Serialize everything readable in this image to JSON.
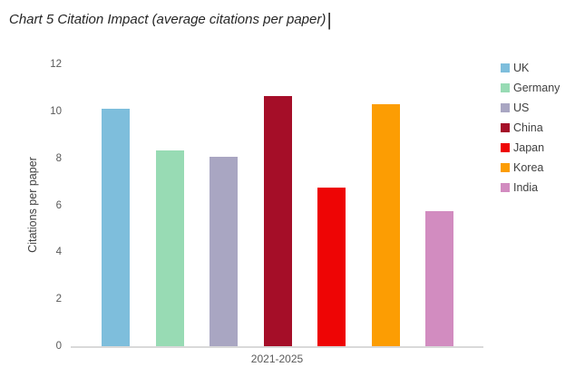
{
  "title": {
    "text": "Chart 5 Citation Impact (average citations per paper)",
    "cursor_glyph": "|"
  },
  "chart_data": {
    "type": "bar",
    "title": "Chart 5 Citation Impact (average citations per paper)",
    "categories": [
      "2021-2025"
    ],
    "series": [
      {
        "name": "UK",
        "values": [
          10.1
        ],
        "color": "#7ebedc"
      },
      {
        "name": "Germany",
        "values": [
          8.35
        ],
        "color": "#98dbb4"
      },
      {
        "name": "US",
        "values": [
          8.05
        ],
        "color": "#a9a6c2"
      },
      {
        "name": "China",
        "values": [
          10.65
        ],
        "color": "#a50e28"
      },
      {
        "name": "Japan",
        "values": [
          6.75
        ],
        "color": "#ee0505"
      },
      {
        "name": "Korea",
        "values": [
          10.3
        ],
        "color": "#fc9d03"
      },
      {
        "name": "India",
        "values": [
          5.75
        ],
        "color": "#d28cc0"
      }
    ],
    "xlabel": "",
    "ylabel": "Citations per paper",
    "ylim": [
      0,
      12
    ],
    "yticks": [
      0,
      2,
      4,
      6,
      8,
      10,
      12
    ],
    "grid": false,
    "legend_position": "right"
  },
  "colors": {
    "background": "#ffffff",
    "axis_line": "#d9d9d9",
    "tick_text": "#595959",
    "axis_title_text": "#404040",
    "legend_text": "#404040",
    "title_text": "#262626"
  }
}
